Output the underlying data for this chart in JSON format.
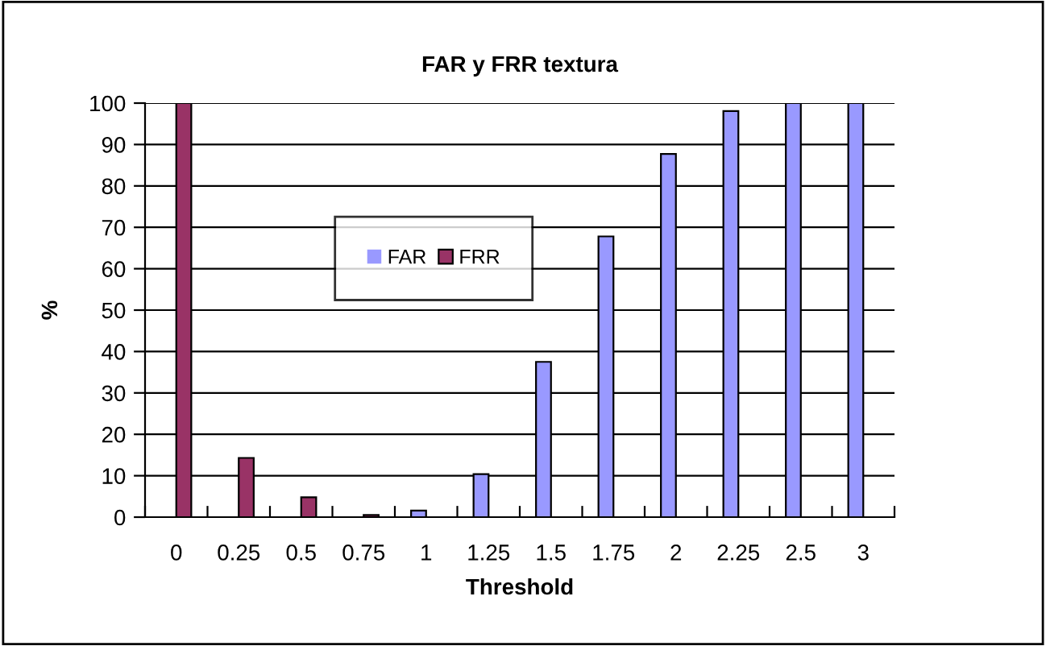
{
  "chart_data": {
    "type": "bar",
    "title": "FAR y FRR textura",
    "xlabel": "Threshold",
    "ylabel": "%",
    "categories": [
      "0",
      "0.25",
      "0.5",
      "0.75",
      "1",
      "1.25",
      "1.5",
      "1.75",
      "2",
      "2.25",
      "2.5",
      "3"
    ],
    "series": [
      {
        "name": "FAR",
        "color": "#9999ff",
        "values": [
          0,
          0,
          0,
          0,
          1.6,
          10.4,
          37.5,
          67.8,
          87.7,
          98.1,
          100,
          100
        ]
      },
      {
        "name": "FRR",
        "color": "#993366",
        "values": [
          100,
          14.3,
          4.8,
          0.5,
          0,
          0,
          0,
          0,
          0,
          0,
          0,
          0
        ]
      }
    ],
    "ylim": [
      0,
      100
    ],
    "yticks": [
      0,
      10,
      20,
      30,
      40,
      50,
      60,
      70,
      80,
      90,
      100
    ],
    "grid": "y",
    "legend": "top left"
  }
}
